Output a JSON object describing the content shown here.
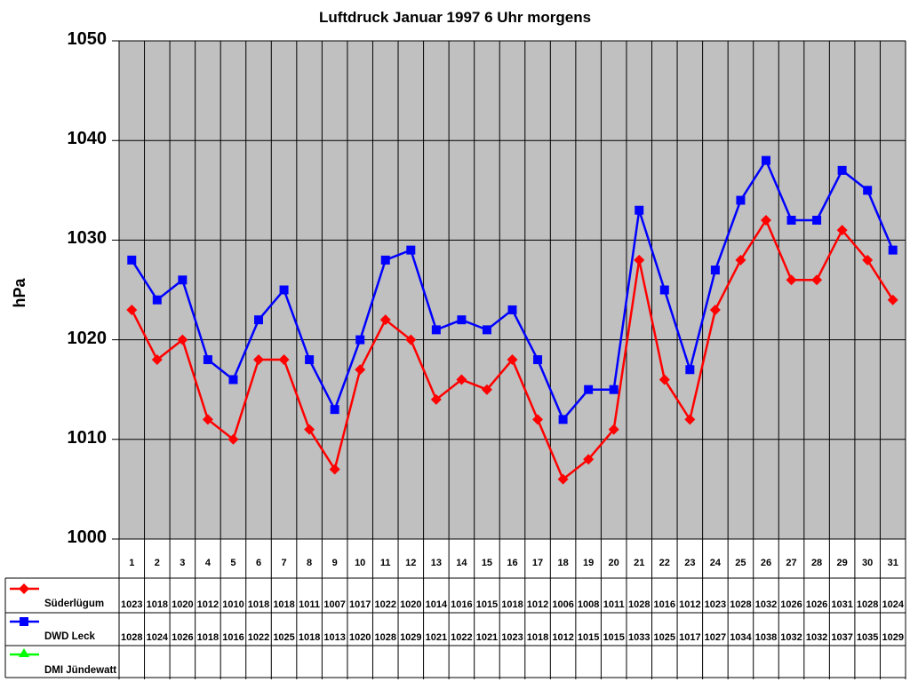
{
  "chart_data": {
    "type": "line",
    "title": "Luftdruck Januar 1997 6 Uhr morgens",
    "xlabel": "",
    "ylabel": "hPa",
    "ylim": [
      1000,
      1050
    ],
    "yticks": [
      "1050",
      "1040",
      "1030",
      "1020",
      "1010",
      "1000"
    ],
    "grid": true,
    "legend_position": "data-table-left",
    "categories": [
      "1",
      "2",
      "3",
      "4",
      "5",
      "6",
      "7",
      "8",
      "9",
      "10",
      "11",
      "12",
      "13",
      "14",
      "15",
      "16",
      "17",
      "18",
      "19",
      "20",
      "21",
      "22",
      "23",
      "24",
      "25",
      "26",
      "27",
      "28",
      "29",
      "30",
      "31"
    ],
    "series": [
      {
        "name": "Süderlügum",
        "color": "#ff0000",
        "marker": "diamond",
        "values": [
          1023,
          1018,
          1020,
          1012,
          1010,
          1018,
          1018,
          1011,
          1007,
          1017,
          1022,
          1020,
          1014,
          1016,
          1015,
          1018,
          1012,
          1006,
          1008,
          1011,
          1028,
          1016,
          1012,
          1023,
          1028,
          1032,
          1026,
          1026,
          1031,
          1028,
          1024
        ]
      },
      {
        "name": "DWD Leck",
        "color": "#0000ff",
        "marker": "square",
        "values": [
          1028,
          1024,
          1026,
          1018,
          1016,
          1022,
          1025,
          1018,
          1013,
          1020,
          1028,
          1029,
          1021,
          1022,
          1021,
          1023,
          1018,
          1012,
          1015,
          1015,
          1033,
          1025,
          1017,
          1027,
          1034,
          1038,
          1032,
          1032,
          1037,
          1035,
          1029
        ]
      },
      {
        "name": "DMI Jündewatt",
        "color": "#00ff00",
        "marker": "triangle",
        "values": []
      }
    ]
  },
  "colors": {
    "plot_bg": "#c0c0c0",
    "grid": "#000000"
  }
}
